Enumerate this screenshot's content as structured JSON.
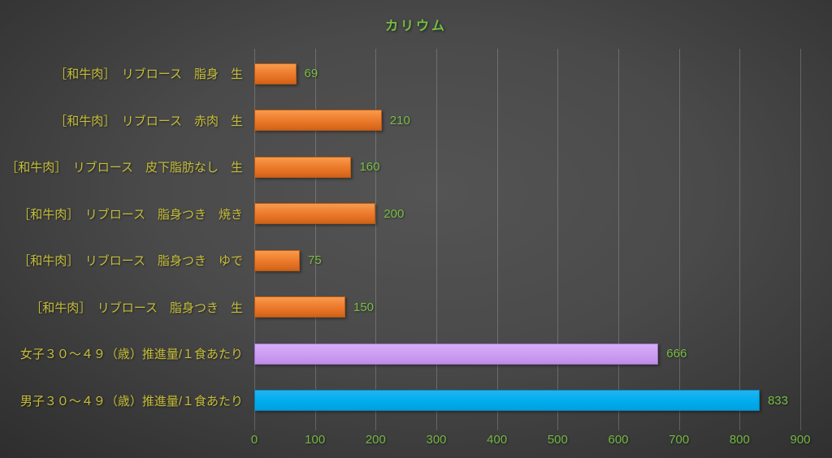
{
  "chart_data": {
    "type": "bar",
    "orientation": "horizontal",
    "title": "カリウム",
    "xlabel": "",
    "ylabel": "",
    "categories_order": "top-to-bottom",
    "categories": [
      "［和牛肉］　リブロース　脂身　生",
      "［和牛肉］　リブロース　赤肉　生",
      "［和牛肉］　リブロース　皮下脂肪なし　生",
      "［和牛肉］　リブロース　脂身つき　焼き",
      "［和牛肉］　リブロース　脂身つき　ゆで",
      "［和牛肉］　リブロース　脂身つき　生",
      "女子３０～４９（歳）推進量/１食あたり",
      "男子３０～４９（歳）推進量/１食あたり"
    ],
    "values": [
      69,
      210,
      160,
      200,
      75,
      150,
      666,
      833
    ],
    "bar_colors": [
      "orange",
      "orange",
      "orange",
      "orange",
      "orange",
      "orange",
      "purple",
      "blue"
    ],
    "data_labels_shown": true,
    "xlim": [
      0,
      900
    ],
    "x_ticks": [
      0,
      100,
      200,
      300,
      400,
      500,
      600,
      700,
      800,
      900
    ],
    "grid": true,
    "legend": "none",
    "colors": {
      "background_center": "#545454",
      "background_edge": "#262626",
      "title_text": "#77c043",
      "category_text": "#c6be3a",
      "value_text": "#79be44",
      "tick_text": "#74b843",
      "gridline": "#767676",
      "orange_fill": "#ee7d2f",
      "orange_border": "#b95a14",
      "purple_fill": "#cc9df2",
      "purple_border": "#9c73c9",
      "blue_fill": "#00acec",
      "blue_border": "#0d81b5"
    }
  }
}
